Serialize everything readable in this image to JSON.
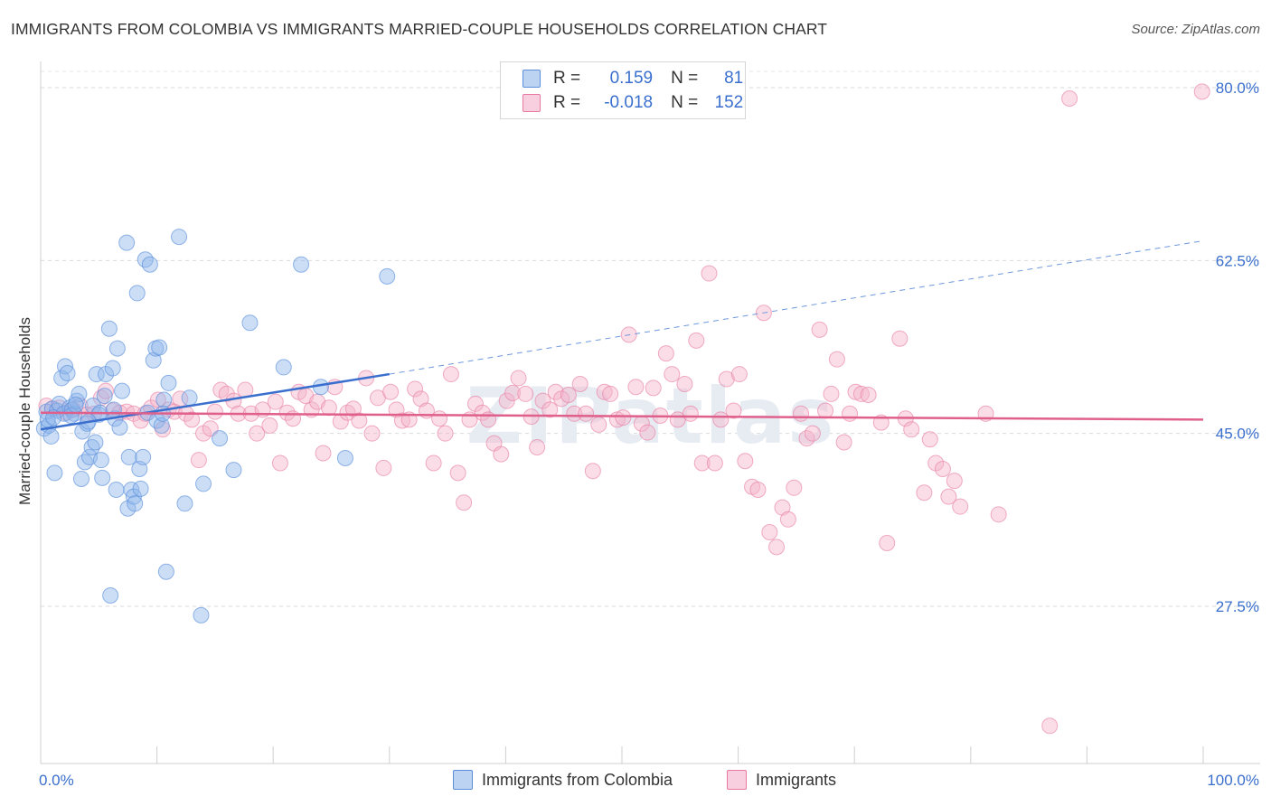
{
  "header": {
    "title": "IMMIGRANTS FROM COLOMBIA VS IMMIGRANTS MARRIED-COUPLE HOUSEHOLDS CORRELATION CHART",
    "source": "Source: ZipAtlas.com"
  },
  "legend": {
    "rows": [
      {
        "r_label": "R =",
        "r_value": "0.159",
        "n_label": "N =",
        "n_value": "81",
        "color": "#8fb6ea"
      },
      {
        "r_label": "R =",
        "r_value": "-0.018",
        "n_label": "N =",
        "n_value": "152",
        "color": "#f0a0bd"
      }
    ]
  },
  "bottom_legend": {
    "items": [
      {
        "label": "Immigrants from Colombia",
        "color": "#8fb6ea"
      },
      {
        "label": "Immigrants",
        "color": "#f0a0bd"
      }
    ]
  },
  "watermark": "ZIPatlas",
  "chart_data": {
    "type": "scatter",
    "ylabel": "Married-couple Households",
    "xlabel": "",
    "xlim": [
      0,
      100
    ],
    "ylim": [
      10,
      84
    ],
    "x_tick_labels": [
      "0.0%",
      "100.0%"
    ],
    "y_ticks": [
      27.5,
      45.0,
      62.5,
      80.0
    ],
    "y_tick_labels": [
      "27.5%",
      "45.0%",
      "62.5%",
      "80.0%"
    ],
    "grid": "horizontal dashed",
    "legend_position": "top-center",
    "colors": {
      "colombia": "#5b8fdc",
      "immigrants": "#e87aa0",
      "tick_label": "#3a6fce"
    },
    "series": [
      {
        "name": "Immigrants from Colombia",
        "color": "#8fb6ea",
        "stroke": "#5b8fdc",
        "trend": {
          "x0": 0,
          "y0": 45.4,
          "x1": 30,
          "y1": 51.0,
          "dashed_to_x": 100,
          "dashed_to_y": 64.5
        },
        "points": [
          [
            0.3,
            45.5
          ],
          [
            0.5,
            47.2
          ],
          [
            0.7,
            45.8
          ],
          [
            0.9,
            44.7
          ],
          [
            1.0,
            47.5
          ],
          [
            1.2,
            41.0
          ],
          [
            1.4,
            47.3
          ],
          [
            1.6,
            48.0
          ],
          [
            1.8,
            50.6
          ],
          [
            2.0,
            47.0
          ],
          [
            2.1,
            51.8
          ],
          [
            2.3,
            51.1
          ],
          [
            2.5,
            47.6
          ],
          [
            2.7,
            47.4
          ],
          [
            2.9,
            47.0
          ],
          [
            3.1,
            48.3
          ],
          [
            3.3,
            49.0
          ],
          [
            3.5,
            40.4
          ],
          [
            3.6,
            45.2
          ],
          [
            3.8,
            42.1
          ],
          [
            4.0,
            46.0
          ],
          [
            4.2,
            42.6
          ],
          [
            4.4,
            43.6
          ],
          [
            4.5,
            47.8
          ],
          [
            4.7,
            44.1
          ],
          [
            4.8,
            51.0
          ],
          [
            5.0,
            46.9
          ],
          [
            5.1,
            47.1
          ],
          [
            5.2,
            42.3
          ],
          [
            5.3,
            40.5
          ],
          [
            5.5,
            48.8
          ],
          [
            5.6,
            51.0
          ],
          [
            5.9,
            55.6
          ],
          [
            6.0,
            28.6
          ],
          [
            6.2,
            51.6
          ],
          [
            6.4,
            46.5
          ],
          [
            6.5,
            39.3
          ],
          [
            6.6,
            53.6
          ],
          [
            6.8,
            45.6
          ],
          [
            7.0,
            49.3
          ],
          [
            7.4,
            64.3
          ],
          [
            7.5,
            37.4
          ],
          [
            7.6,
            42.6
          ],
          [
            7.8,
            39.3
          ],
          [
            8.0,
            38.6
          ],
          [
            8.1,
            37.9
          ],
          [
            8.3,
            59.2
          ],
          [
            8.5,
            41.4
          ],
          [
            8.6,
            39.4
          ],
          [
            8.8,
            42.6
          ],
          [
            9.0,
            62.6
          ],
          [
            9.2,
            47.1
          ],
          [
            9.4,
            62.1
          ],
          [
            9.7,
            52.4
          ],
          [
            9.9,
            53.6
          ],
          [
            10.0,
            46.3
          ],
          [
            10.2,
            53.7
          ],
          [
            10.4,
            45.8
          ],
          [
            10.6,
            48.4
          ],
          [
            10.8,
            31.0
          ],
          [
            11.0,
            50.1
          ],
          [
            11.9,
            64.9
          ],
          [
            12.4,
            37.9
          ],
          [
            12.8,
            48.6
          ],
          [
            13.8,
            26.6
          ],
          [
            14.0,
            39.9
          ],
          [
            15.4,
            44.5
          ],
          [
            16.6,
            41.3
          ],
          [
            18.0,
            56.2
          ],
          [
            20.9,
            51.7
          ],
          [
            22.4,
            62.1
          ],
          [
            24.1,
            49.7
          ],
          [
            26.2,
            42.5
          ],
          [
            29.8,
            60.9
          ],
          [
            0.6,
            46.4
          ],
          [
            1.1,
            46.6
          ],
          [
            2.6,
            46.8
          ],
          [
            3.0,
            47.9
          ],
          [
            4.1,
            46.2
          ],
          [
            6.3,
            47.4
          ],
          [
            10.5,
            47.0
          ]
        ]
      },
      {
        "name": "Immigrants",
        "color": "#f5b3c9",
        "stroke": "#e87aa0",
        "trend": {
          "x0": 0,
          "y0": 47.1,
          "x1": 100,
          "y1": 46.4
        },
        "points": [
          [
            0.5,
            47.8
          ],
          [
            1.0,
            47.5
          ],
          [
            1.6,
            47.6
          ],
          [
            2.2,
            47.1
          ],
          [
            2.8,
            47.4
          ],
          [
            3.4,
            47.8
          ],
          [
            4.0,
            46.9
          ],
          [
            4.6,
            47.0
          ],
          [
            5.2,
            48.6
          ],
          [
            5.6,
            49.3
          ],
          [
            6.2,
            47.3
          ],
          [
            6.8,
            47.1
          ],
          [
            7.4,
            47.2
          ],
          [
            8.0,
            47.0
          ],
          [
            8.6,
            46.3
          ],
          [
            9.0,
            47.0
          ],
          [
            9.5,
            47.6
          ],
          [
            10.1,
            48.4
          ],
          [
            10.5,
            45.4
          ],
          [
            11.0,
            47.4
          ],
          [
            11.5,
            47.2
          ],
          [
            12.0,
            48.5
          ],
          [
            12.5,
            47.0
          ],
          [
            13.0,
            46.4
          ],
          [
            13.6,
            42.3
          ],
          [
            14.0,
            45.0
          ],
          [
            14.6,
            45.5
          ],
          [
            15.0,
            47.2
          ],
          [
            15.5,
            49.4
          ],
          [
            16.0,
            49.0
          ],
          [
            16.6,
            48.3
          ],
          [
            17.0,
            47.0
          ],
          [
            17.6,
            49.4
          ],
          [
            18.1,
            47.0
          ],
          [
            18.6,
            45.0
          ],
          [
            19.1,
            47.4
          ],
          [
            19.7,
            45.8
          ],
          [
            20.2,
            48.2
          ],
          [
            20.6,
            42.0
          ],
          [
            21.2,
            47.1
          ],
          [
            21.7,
            46.5
          ],
          [
            22.2,
            49.2
          ],
          [
            22.8,
            48.8
          ],
          [
            23.3,
            47.4
          ],
          [
            23.8,
            48.2
          ],
          [
            24.3,
            43.0
          ],
          [
            24.8,
            47.6
          ],
          [
            25.3,
            49.7
          ],
          [
            25.8,
            46.2
          ],
          [
            26.4,
            47.1
          ],
          [
            26.9,
            47.5
          ],
          [
            27.4,
            46.3
          ],
          [
            28.0,
            50.6
          ],
          [
            28.5,
            45.0
          ],
          [
            29.0,
            48.6
          ],
          [
            29.5,
            41.5
          ],
          [
            30.1,
            49.2
          ],
          [
            30.6,
            47.4
          ],
          [
            31.1,
            46.3
          ],
          [
            31.7,
            46.4
          ],
          [
            32.2,
            49.5
          ],
          [
            32.7,
            48.5
          ],
          [
            33.2,
            47.3
          ],
          [
            33.8,
            42.0
          ],
          [
            34.3,
            46.5
          ],
          [
            34.8,
            45.0
          ],
          [
            35.3,
            51.0
          ],
          [
            35.9,
            41.0
          ],
          [
            36.4,
            38.0
          ],
          [
            36.9,
            46.4
          ],
          [
            37.4,
            48.0
          ],
          [
            38.0,
            47.1
          ],
          [
            38.5,
            46.4
          ],
          [
            39.0,
            44.0
          ],
          [
            39.6,
            42.9
          ],
          [
            40.1,
            48.3
          ],
          [
            40.6,
            49.1
          ],
          [
            41.1,
            50.6
          ],
          [
            41.7,
            49.0
          ],
          [
            42.2,
            46.7
          ],
          [
            42.7,
            43.6
          ],
          [
            43.2,
            48.3
          ],
          [
            43.8,
            47.4
          ],
          [
            44.3,
            49.2
          ],
          [
            44.8,
            48.5
          ],
          [
            45.4,
            48.9
          ],
          [
            45.9,
            47.0
          ],
          [
            46.4,
            50.0
          ],
          [
            46.9,
            47.0
          ],
          [
            47.5,
            41.2
          ],
          [
            48.0,
            45.9
          ],
          [
            48.5,
            49.2
          ],
          [
            49.0,
            49.0
          ],
          [
            49.6,
            46.4
          ],
          [
            50.1,
            46.6
          ],
          [
            50.6,
            55.0
          ],
          [
            51.2,
            49.7
          ],
          [
            51.7,
            46.0
          ],
          [
            52.2,
            45.1
          ],
          [
            52.7,
            49.6
          ],
          [
            53.3,
            46.8
          ],
          [
            53.8,
            53.1
          ],
          [
            54.3,
            51.0
          ],
          [
            54.8,
            46.4
          ],
          [
            55.4,
            50.0
          ],
          [
            55.9,
            47.0
          ],
          [
            56.4,
            54.4
          ],
          [
            56.9,
            42.0
          ],
          [
            57.5,
            61.2
          ],
          [
            58.0,
            42.0
          ],
          [
            58.5,
            46.4
          ],
          [
            59.0,
            50.5
          ],
          [
            59.6,
            47.3
          ],
          [
            60.1,
            51.0
          ],
          [
            60.6,
            42.2
          ],
          [
            61.2,
            39.6
          ],
          [
            61.7,
            39.3
          ],
          [
            62.2,
            57.2
          ],
          [
            62.7,
            35.0
          ],
          [
            63.3,
            33.5
          ],
          [
            63.8,
            37.5
          ],
          [
            64.3,
            36.3
          ],
          [
            64.8,
            39.5
          ],
          [
            65.4,
            47.0
          ],
          [
            65.9,
            44.5
          ],
          [
            66.4,
            45.0
          ],
          [
            67.0,
            55.5
          ],
          [
            67.5,
            47.3
          ],
          [
            68.0,
            49.0
          ],
          [
            68.5,
            52.5
          ],
          [
            69.1,
            44.1
          ],
          [
            69.6,
            47.0
          ],
          [
            70.1,
            49.2
          ],
          [
            70.6,
            49.0
          ],
          [
            71.2,
            48.9
          ],
          [
            72.3,
            46.1
          ],
          [
            72.8,
            33.9
          ],
          [
            73.9,
            54.6
          ],
          [
            74.4,
            46.5
          ],
          [
            74.9,
            45.4
          ],
          [
            76.0,
            39.0
          ],
          [
            76.5,
            44.4
          ],
          [
            77.0,
            42.0
          ],
          [
            77.6,
            41.4
          ],
          [
            78.1,
            38.6
          ],
          [
            78.6,
            40.2
          ],
          [
            79.1,
            37.6
          ],
          [
            81.3,
            47.0
          ],
          [
            82.4,
            36.8
          ],
          [
            86.8,
            15.4
          ],
          [
            88.5,
            78.9
          ],
          [
            99.9,
            79.6
          ]
        ]
      }
    ]
  }
}
